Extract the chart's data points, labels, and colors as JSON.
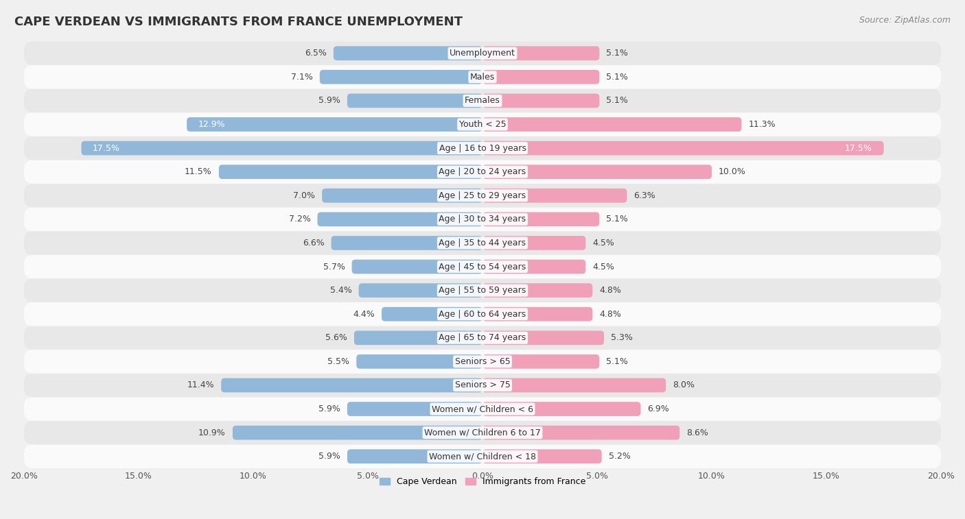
{
  "title": "CAPE VERDEAN VS IMMIGRANTS FROM FRANCE UNEMPLOYMENT",
  "source": "Source: ZipAtlas.com",
  "categories": [
    "Unemployment",
    "Males",
    "Females",
    "Youth < 25",
    "Age | 16 to 19 years",
    "Age | 20 to 24 years",
    "Age | 25 to 29 years",
    "Age | 30 to 34 years",
    "Age | 35 to 44 years",
    "Age | 45 to 54 years",
    "Age | 55 to 59 years",
    "Age | 60 to 64 years",
    "Age | 65 to 74 years",
    "Seniors > 65",
    "Seniors > 75",
    "Women w/ Children < 6",
    "Women w/ Children 6 to 17",
    "Women w/ Children < 18"
  ],
  "cape_verdean": [
    6.5,
    7.1,
    5.9,
    12.9,
    17.5,
    11.5,
    7.0,
    7.2,
    6.6,
    5.7,
    5.4,
    4.4,
    5.6,
    5.5,
    11.4,
    5.9,
    10.9,
    5.9
  ],
  "immigrants_france": [
    5.1,
    5.1,
    5.1,
    11.3,
    17.5,
    10.0,
    6.3,
    5.1,
    4.5,
    4.5,
    4.8,
    4.8,
    5.3,
    5.1,
    8.0,
    6.9,
    8.6,
    5.2
  ],
  "cape_verdean_color": "#92b8d9",
  "immigrants_france_color": "#f0a0b8",
  "background_color": "#f0f0f0",
  "row_light_color": "#fafafa",
  "row_dark_color": "#e8e8e8",
  "x_min": -20.0,
  "x_max": 20.0,
  "legend_cape_verdean": "Cape Verdean",
  "legend_immigrants_france": "Immigrants from France",
  "title_fontsize": 13,
  "source_fontsize": 9,
  "label_fontsize": 9,
  "value_fontsize": 9,
  "tick_fontsize": 9,
  "bar_height": 0.6
}
